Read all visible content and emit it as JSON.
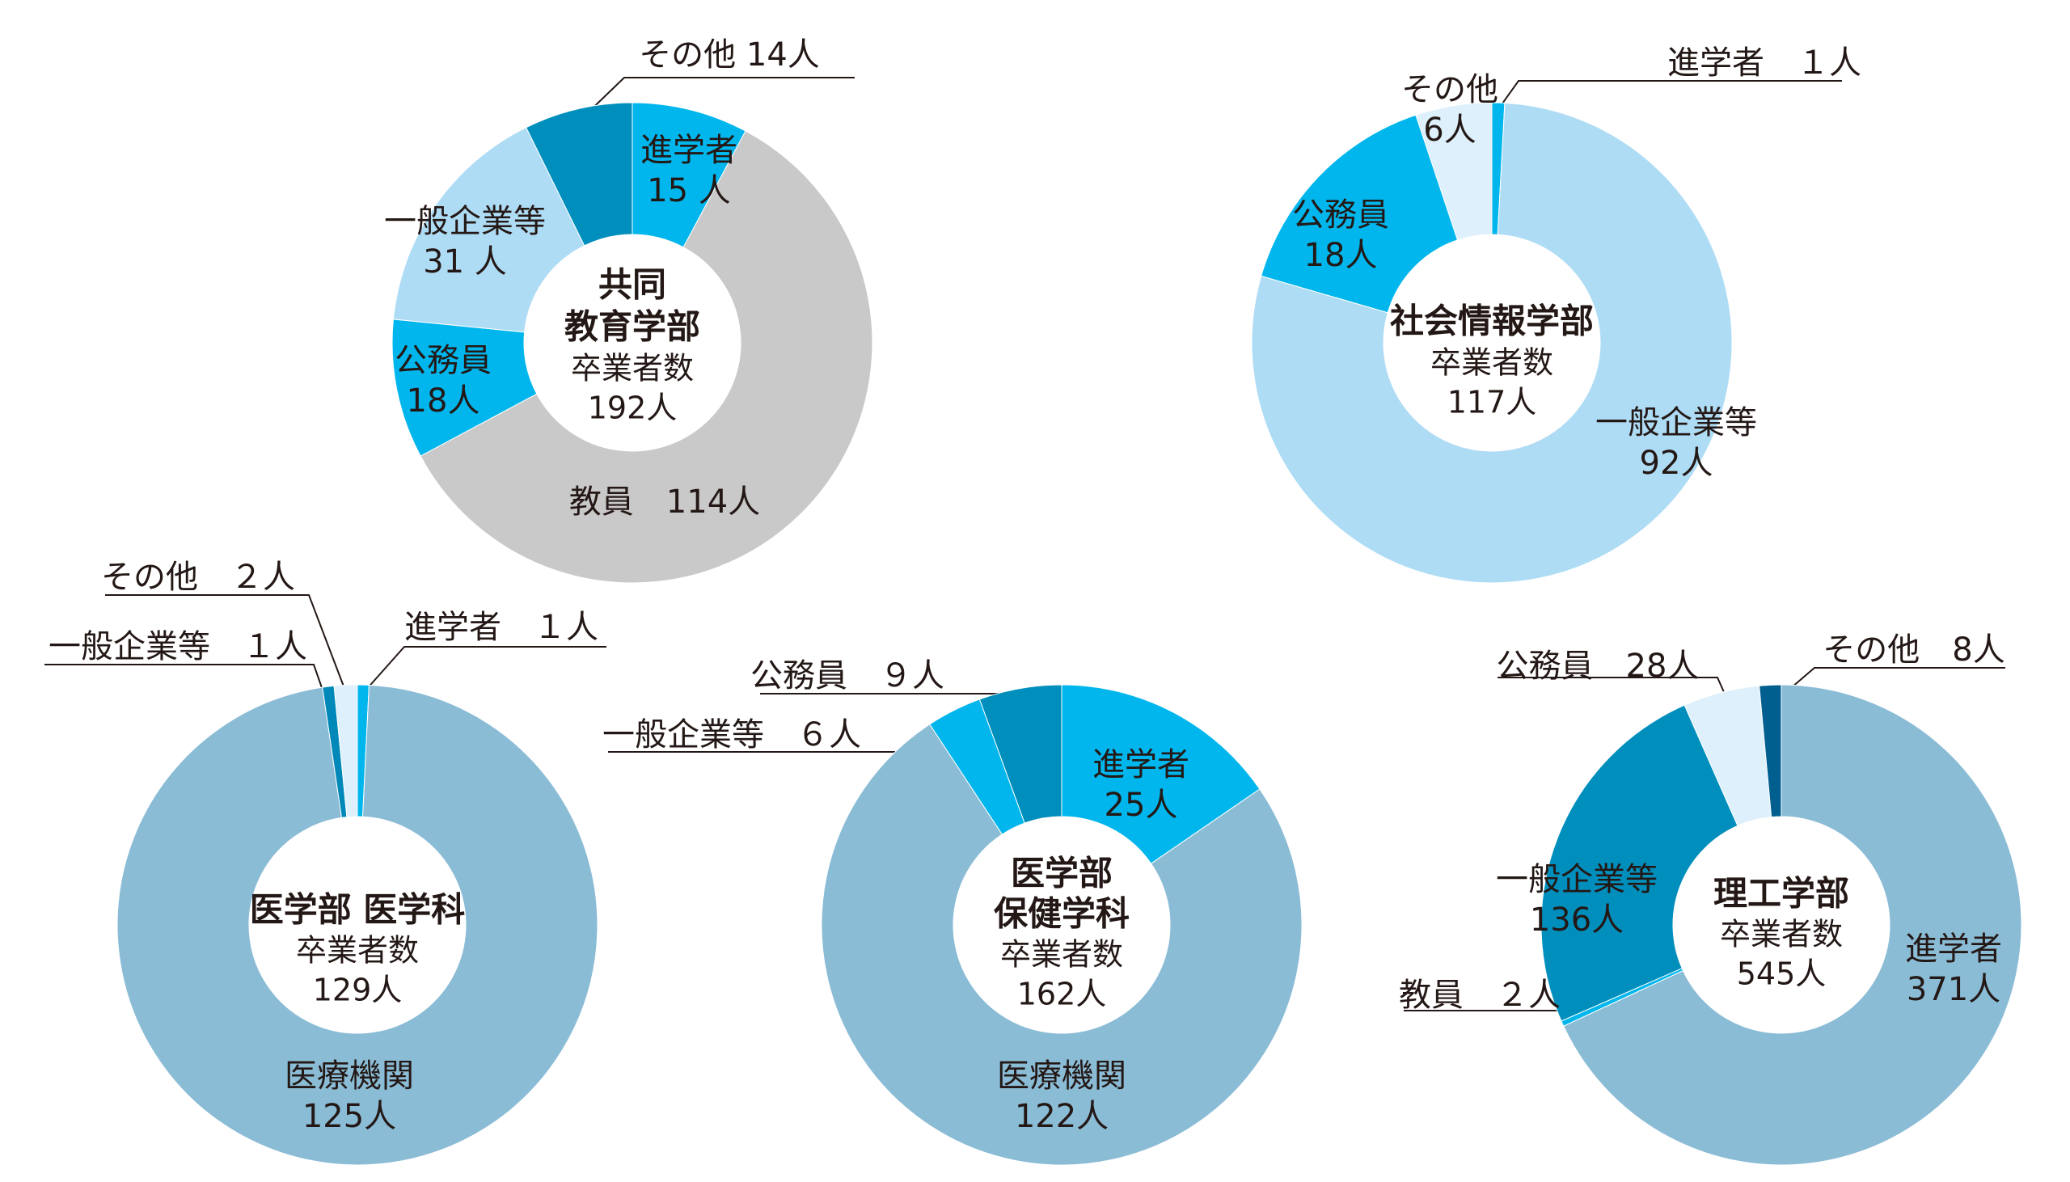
{
  "colors": {
    "進学者": "#00b6ec",
    "教員": "#c9c9c9",
    "公務員": "#00b6ec",
    "一般企業等": "#afdcf5",
    "その他": "#008fbd",
    "医療機関": "#8bbcd6",
    "center": "#ffffff"
  },
  "chart_data": [
    {
      "type": "pie",
      "variant": "donut",
      "center_title": [
        "共同",
        "教育学部"
      ],
      "center_sub": "卒業者数",
      "center_total": "192人",
      "total": 192,
      "slices": [
        {
          "name": "進学者",
          "value": 15,
          "color": "#00b6ec",
          "label_lines": [
            "進学者",
            "15 人"
          ]
        },
        {
          "name": "教員",
          "value": 114,
          "color": "#c9c9c9",
          "label_lines": [
            "教員　114人"
          ]
        },
        {
          "name": "公務員",
          "value": 18,
          "color": "#00b6ec",
          "label_lines": [
            "公務員",
            "18人"
          ]
        },
        {
          "name": "一般企業等",
          "value": 31,
          "color": "#afdcf5",
          "label_lines": [
            "一般企業等",
            "31 人"
          ]
        },
        {
          "name": "その他",
          "value": 14,
          "color": "#008fbd",
          "label_lines": [
            "その他 14人"
          ]
        }
      ]
    },
    {
      "type": "pie",
      "variant": "donut",
      "center_title": [
        "社会情報学部"
      ],
      "center_sub": "卒業者数",
      "center_total": "117人",
      "total": 117,
      "slices": [
        {
          "name": "進学者",
          "value": 1,
          "color": "#00b6ec",
          "label_lines": [
            "進学者　１人"
          ]
        },
        {
          "name": "一般企業等",
          "value": 92,
          "color": "#afdcf5",
          "label_lines": [
            "一般企業等",
            "92人"
          ]
        },
        {
          "name": "公務員",
          "value": 18,
          "color": "#00b6ec",
          "label_lines": [
            "公務員",
            "18人"
          ]
        },
        {
          "name": "その他",
          "value": 6,
          "color": "#ddf0fb",
          "label_lines": [
            "その他",
            "6人"
          ]
        }
      ]
    },
    {
      "type": "pie",
      "variant": "donut",
      "center_title": [
        "医学部 医学科"
      ],
      "center_sub": "卒業者数",
      "center_total": "129人",
      "total": 129,
      "slices": [
        {
          "name": "進学者",
          "value": 1,
          "color": "#00b6ec",
          "label_lines": [
            "進学者　１人"
          ]
        },
        {
          "name": "医療機関",
          "value": 125,
          "color": "#8bbcd6",
          "label_lines": [
            "医療機関",
            "125人"
          ]
        },
        {
          "name": "一般企業等",
          "value": 1,
          "color": "#0088b8",
          "label_lines": [
            "一般企業等　１人"
          ]
        },
        {
          "name": "その他",
          "value": 2,
          "color": "#ddf0fb",
          "label_lines": [
            "その他　２人"
          ]
        }
      ]
    },
    {
      "type": "pie",
      "variant": "donut",
      "center_title": [
        "医学部",
        "保健学科"
      ],
      "center_sub": "卒業者数",
      "center_total": "162人",
      "total": 162,
      "slices": [
        {
          "name": "進学者",
          "value": 25,
          "color": "#00b6ec",
          "label_lines": [
            "進学者",
            "25人"
          ]
        },
        {
          "name": "医療機関",
          "value": 122,
          "color": "#8bbcd6",
          "label_lines": [
            "医療機関",
            "122人"
          ]
        },
        {
          "name": "一般企業等",
          "value": 6,
          "color": "#00b6ec",
          "label_lines": [
            "一般企業等　６人"
          ]
        },
        {
          "name": "公務員",
          "value": 9,
          "color": "#008fbd",
          "label_lines": [
            "公務員　９人"
          ]
        }
      ]
    },
    {
      "type": "pie",
      "variant": "donut",
      "center_title": [
        "理工学部"
      ],
      "center_sub": "卒業者数",
      "center_total": "545人",
      "total": 545,
      "slices": [
        {
          "name": "進学者",
          "value": 371,
          "color": "#8bbcd6",
          "label_lines": [
            "進学者",
            "371人"
          ]
        },
        {
          "name": "教員",
          "value": 2,
          "color": "#00b6ec",
          "label_lines": [
            "教員　２人"
          ]
        },
        {
          "name": "一般企業等",
          "value": 136,
          "color": "#008fbd",
          "label_lines": [
            "一般企業等",
            "136人"
          ]
        },
        {
          "name": "公務員",
          "value": 28,
          "color": "#ddf0fb",
          "label_lines": [
            "公務員　28人"
          ]
        },
        {
          "name": "その他",
          "value": 8,
          "color": "#005f8f",
          "label_lines": [
            "その他　8人"
          ]
        }
      ]
    }
  ]
}
